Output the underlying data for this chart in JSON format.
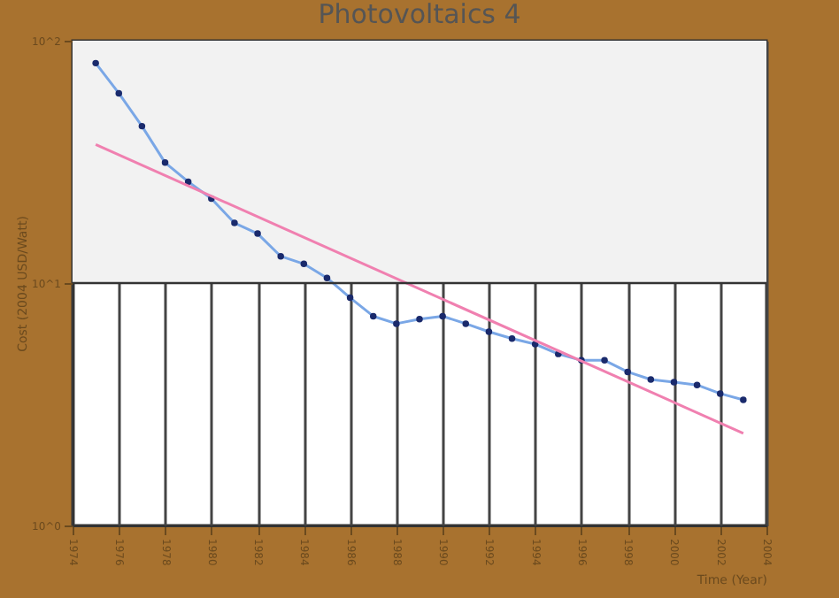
{
  "chart_data": {
    "type": "line",
    "title": "Photovoltaics 4",
    "xlabel": "Time (Year)",
    "ylabel": "Cost (2004 USD/Watt)",
    "x": [
      1975,
      1976,
      1977,
      1978,
      1979,
      1980,
      1981,
      1982,
      1983,
      1984,
      1985,
      1986,
      1987,
      1988,
      1989,
      1990,
      1991,
      1992,
      1993,
      1994,
      1995,
      1996,
      1997,
      1998,
      1999,
      2000,
      2001,
      2002,
      2003
    ],
    "series": [
      {
        "color": "#7aa7e6",
        "marker": "circle",
        "values": [
          80.8,
          60.7,
          44.4,
          31.4,
          26.2,
          22.3,
          17.7,
          16.0,
          12.9,
          12.0,
          10.5,
          8.7,
          7.3,
          6.8,
          7.1,
          7.3,
          6.8,
          6.3,
          5.9,
          5.6,
          5.1,
          4.8,
          4.8,
          4.3,
          4.0,
          3.9,
          3.8,
          3.5,
          3.3
        ]
      },
      {
        "type": "line",
        "color": "#f080b0",
        "marker": "none",
        "x": [
          1975,
          2003
        ],
        "values": [
          37.3,
          2.4
        ]
      }
    ],
    "log": "y",
    "xlim": [
      1974,
      2004
    ],
    "xticks": [
      1974,
      1976,
      1978,
      1980,
      1982,
      1984,
      1986,
      1988,
      1990,
      1992,
      1994,
      1996,
      1998,
      2000,
      2002,
      2004
    ],
    "ylim": [
      1,
      100
    ],
    "yticks": [
      {
        "value": 1,
        "label": "10^0"
      },
      {
        "value": 10,
        "label": "10^1"
      },
      {
        "value": 100,
        "label": "10^2"
      }
    ],
    "bands": [
      {
        "axis": "y",
        "from": 10,
        "to": 100,
        "color": "#f2f2f2"
      }
    ],
    "ref_lines": [
      {
        "axis": "y",
        "value": 10,
        "color": "#333333"
      }
    ],
    "grid": "x"
  }
}
